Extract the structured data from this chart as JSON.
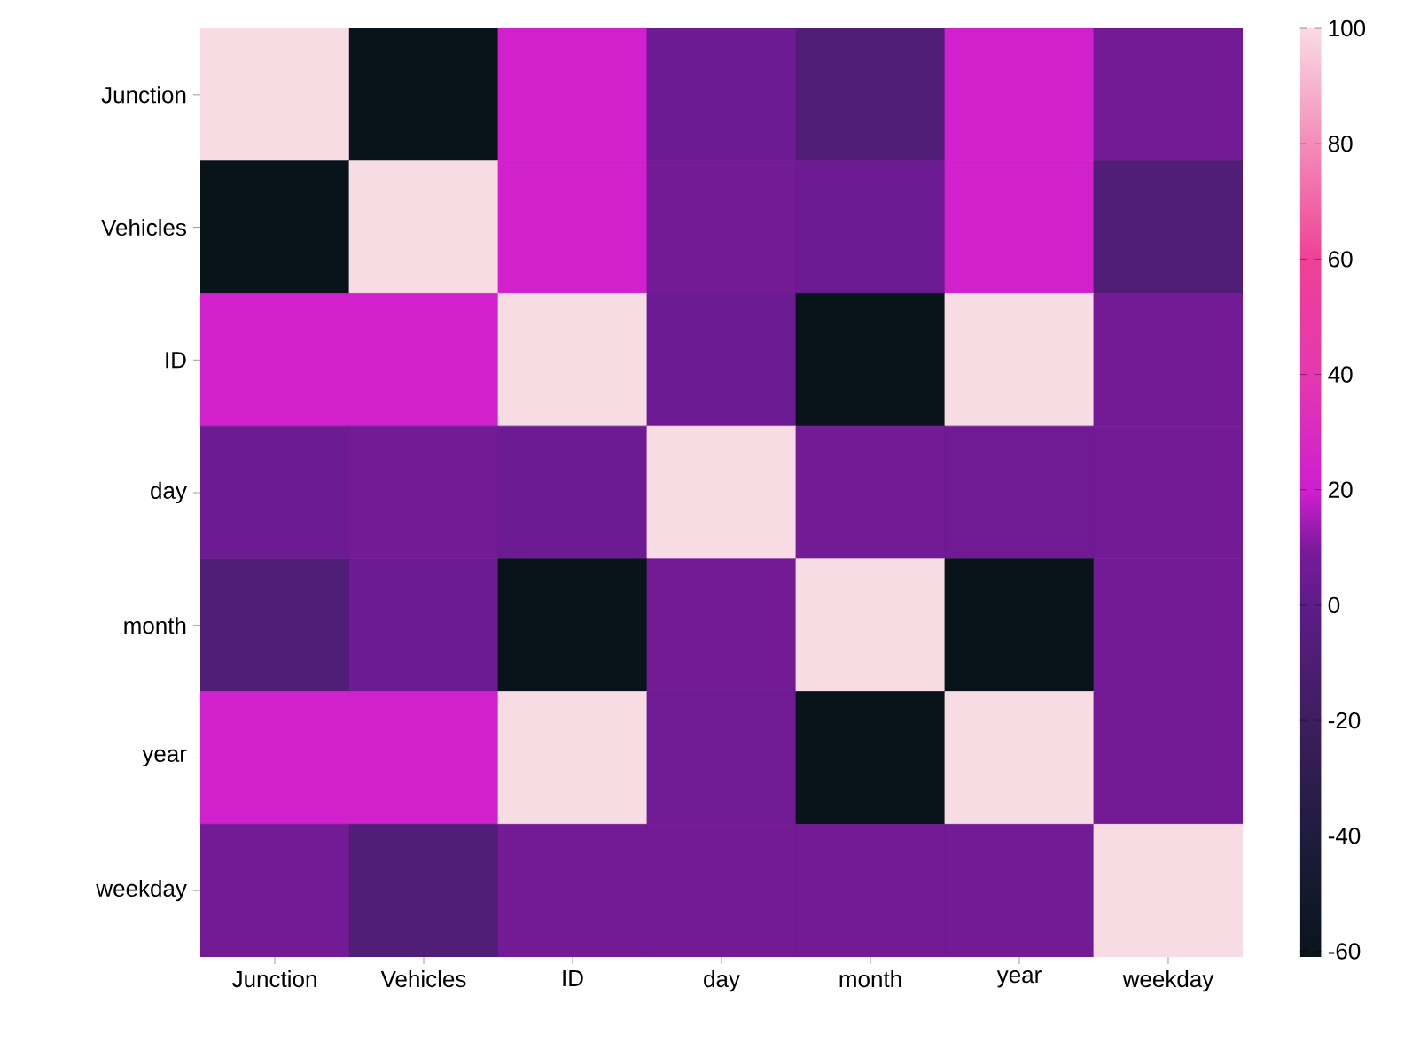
{
  "chart_data": {
    "type": "heatmap",
    "categories": [
      "Junction",
      "Vehicles",
      "ID",
      "day",
      "month",
      "year",
      "weekday"
    ],
    "y_categories": [
      "Junction",
      "Vehicles",
      "ID",
      "day",
      "month",
      "year",
      "weekday"
    ],
    "cells": [
      [
        100,
        -61,
        22,
        5,
        -8,
        22,
        7
      ],
      [
        -61,
        100,
        22,
        7,
        5,
        22,
        -8
      ],
      [
        22,
        22,
        100,
        5,
        -61,
        100,
        7
      ],
      [
        5,
        7,
        5,
        100,
        7,
        6,
        7
      ],
      [
        -8,
        5,
        -61,
        7,
        100,
        -61,
        7
      ],
      [
        22,
        22,
        100,
        6,
        -61,
        100,
        7
      ],
      [
        7,
        -8,
        7,
        7,
        7,
        7,
        100
      ]
    ],
    "clim": [
      -61,
      100
    ],
    "cticks": [
      -60,
      -40,
      -20,
      0,
      20,
      40,
      60,
      80,
      100
    ]
  }
}
